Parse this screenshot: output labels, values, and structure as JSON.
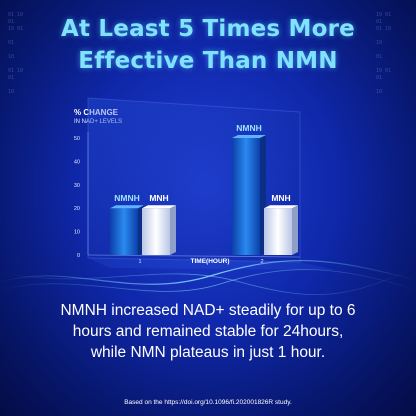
{
  "headline": {
    "line1": "At Least 5 Times More",
    "line2": "Effective Than NMN"
  },
  "chart_data": {
    "type": "bar",
    "y_title": "% CHANGE",
    "y_subtitle": "IN NAD+ LEVELS",
    "xlabel": "TIME(HOUR)",
    "categories": [
      "1",
      "2"
    ],
    "ylim": [
      0,
      50
    ],
    "yticks": [
      0,
      10,
      20,
      30,
      40,
      50
    ],
    "grid": false,
    "series": [
      {
        "name": "NMNH",
        "values": [
          20,
          50
        ],
        "color": "#1e78e6"
      },
      {
        "name": "MNH",
        "values": [
          20,
          20
        ],
        "color": "#e8eefc"
      }
    ]
  },
  "caption": {
    "line1": "NMNH increased NAD+ steadily for up to 6",
    "line2": "hours and remained stable for 24hours,",
    "line3": "while NMN plateaus in just 1 hour."
  },
  "source": "Based on the https://doi.org/10.1096/fi.202001826R study.",
  "colors": {
    "headline": "#7fe3ff",
    "background": "#1233b8"
  }
}
